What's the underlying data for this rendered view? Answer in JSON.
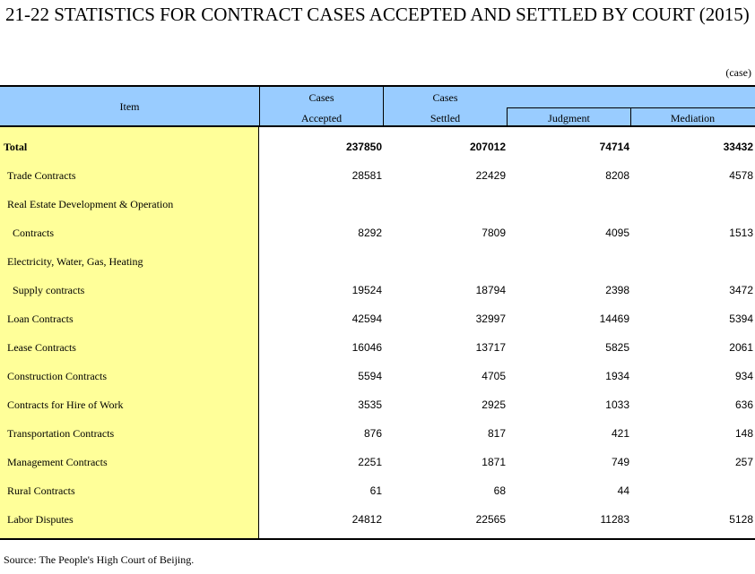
{
  "title": "21-22  STATISTICS FOR CONTRACT CASES ACCEPTED AND SETTLED BY COURT (2015)",
  "unit": "(case)",
  "header": {
    "item": "Item",
    "cases1": "Cases",
    "accepted": "Accepted",
    "cases2": "Cases",
    "settled": "Settled",
    "judgment": "Judgment",
    "mediation": "Mediation"
  },
  "colors": {
    "header_bg": "#99ccff",
    "item_col_bg": "#ffff99"
  },
  "rows": [
    {
      "label": "Total",
      "accepted": "237850",
      "settled": "207012",
      "judgment": "74714",
      "mediation": "33432"
    },
    {
      "label": "Trade Contracts",
      "accepted": "28581",
      "settled": "22429",
      "judgment": "8208",
      "mediation": "4578"
    },
    {
      "label": "Real Estate Development & Operation",
      "accepted": "",
      "settled": "",
      "judgment": "",
      "mediation": ""
    },
    {
      "label": "Contracts",
      "accepted": "8292",
      "settled": "7809",
      "judgment": "4095",
      "mediation": "1513"
    },
    {
      "label": "Electricity, Water, Gas, Heating",
      "accepted": "",
      "settled": "",
      "judgment": "",
      "mediation": ""
    },
    {
      "label": "Supply contracts",
      "accepted": "19524",
      "settled": "18794",
      "judgment": "2398",
      "mediation": "3472"
    },
    {
      "label": "Loan Contracts",
      "accepted": "42594",
      "settled": "32997",
      "judgment": "14469",
      "mediation": "5394"
    },
    {
      "label": "Lease Contracts",
      "accepted": "16046",
      "settled": "13717",
      "judgment": "5825",
      "mediation": "2061"
    },
    {
      "label": "Construction Contracts",
      "accepted": "5594",
      "settled": "4705",
      "judgment": "1934",
      "mediation": "934"
    },
    {
      "label": "Contracts for Hire of Work",
      "accepted": "3535",
      "settled": "2925",
      "judgment": "1033",
      "mediation": "636"
    },
    {
      "label": "Transportation Contracts",
      "accepted": "876",
      "settled": "817",
      "judgment": "421",
      "mediation": "148"
    },
    {
      "label": "Management Contracts",
      "accepted": "2251",
      "settled": "1871",
      "judgment": "749",
      "mediation": "257"
    },
    {
      "label": "Rural Contracts",
      "accepted": "61",
      "settled": "68",
      "judgment": "44",
      "mediation": ""
    },
    {
      "label": "Labor Disputes",
      "accepted": "24812",
      "settled": "22565",
      "judgment": "11283",
      "mediation": "5128"
    }
  ],
  "source": "Source: The People's High Court of Beijing."
}
